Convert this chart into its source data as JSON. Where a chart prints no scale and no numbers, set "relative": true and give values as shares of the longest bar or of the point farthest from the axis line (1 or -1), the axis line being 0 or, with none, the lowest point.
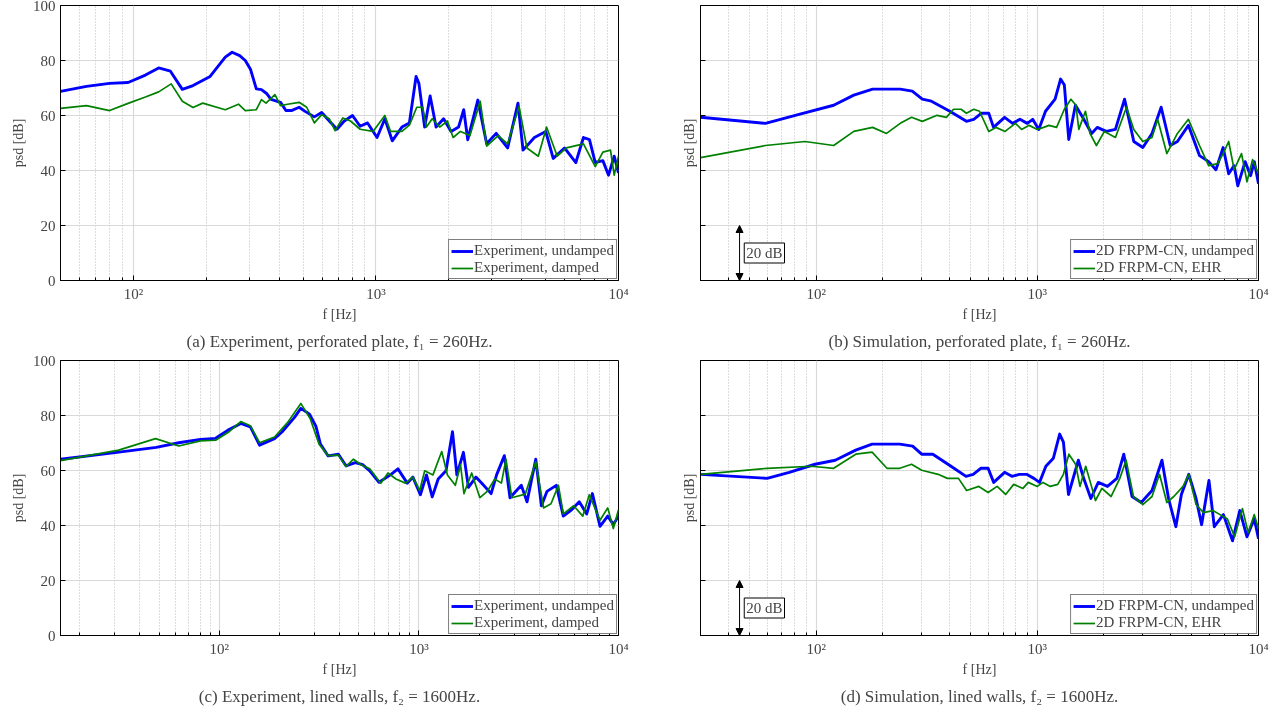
{
  "chart_data": [
    {
      "type": "line",
      "title": "(a) Experiment, perforated plate, f₁ = 260Hz.",
      "xlabel": "f [Hz]",
      "ylabel": "psd [dB]",
      "log": "x",
      "grid": true,
      "legend": "bottom right",
      "xlim": [
        50,
        10000
      ],
      "xticks": [
        {
          "value": 100,
          "label": "10²"
        },
        {
          "value": 1000,
          "label": "10³"
        },
        {
          "value": 10000,
          "label": "10⁴"
        }
      ],
      "ylim": [
        0,
        100
      ],
      "yticks": [
        0,
        20,
        40,
        60,
        80,
        100
      ],
      "series": [
        {
          "name": "Experiment, undamped",
          "color": "#0000ff",
          "x": [
            50,
            64,
            79.7,
            95,
            112,
            127,
            142,
            159,
            176,
            207,
            239,
            255,
            274,
            289,
            304,
            321,
            337,
            355,
            369,
            404,
            425,
            448,
            482,
            510,
            557,
            597,
            642,
            690,
            740,
            800,
            860,
            923,
            1010,
            1088,
            1167,
            1279,
            1373,
            1463,
            1503,
            1587,
            1672,
            1769,
            1900,
            2040,
            2190,
            2300,
            2390,
            2630,
            2860,
            3130,
            3490,
            3850,
            4040,
            4500,
            5010,
            5380,
            5990,
            6670,
            7170,
            7590,
            8020,
            8620,
            9100,
            9600,
            10000
          ],
          "values": [
            68.8,
            70.6,
            71.7,
            72.0,
            74.7,
            77.3,
            76.1,
            69.5,
            70.9,
            74.2,
            81.2,
            83.0,
            81.8,
            80.0,
            76.7,
            69.7,
            69.4,
            67.9,
            65.9,
            64.8,
            61.8,
            61.8,
            63.0,
            61.5,
            59.5,
            61.1,
            58.0,
            55.0,
            58.0,
            60.0,
            56.1,
            57.3,
            52.0,
            58.8,
            50.8,
            55.8,
            57.3,
            74.2,
            71.7,
            55.8,
            67.1,
            55.8,
            58.8,
            54.2,
            55.8,
            62.1,
            51.2,
            65.6,
            49.7,
            53.5,
            48.2,
            64.5,
            47.4,
            52.0,
            54.2,
            44.4,
            48.2,
            42.9,
            52.0,
            51.2,
            42.9,
            43.6,
            38.3,
            45.2,
            39.1
          ]
        },
        {
          "name": "Experiment, damped",
          "color": "#008000",
          "x": [
            50,
            64,
            79.7,
            95,
            112,
            127,
            143,
            159,
            176,
            193,
            239,
            271,
            289,
            321,
            337,
            352,
            383,
            404,
            432,
            482,
            518,
            557,
            597,
            642,
            678,
            730,
            785,
            860,
            972,
            1088,
            1148,
            1279,
            1373,
            1473,
            1557,
            1615,
            1705,
            1831,
            1970,
            2080,
            2230,
            2440,
            2690,
            2860,
            3190,
            3490,
            3890,
            4190,
            4670,
            5050,
            5590,
            6100,
            7170,
            8020,
            8620,
            9270,
            9600,
            10000
          ],
          "values": [
            62.6,
            63.6,
            61.8,
            64.4,
            66.7,
            68.6,
            71.5,
            65.2,
            62.9,
            64.5,
            62.1,
            64.1,
            61.8,
            62.1,
            65.8,
            64.5,
            67.6,
            63.6,
            64.1,
            64.8,
            63.0,
            57.3,
            60.3,
            58.8,
            54.5,
            59.1,
            58.0,
            55.0,
            54.2,
            60.0,
            54.2,
            54.2,
            56.5,
            63.0,
            63.0,
            55.8,
            58.8,
            55.8,
            58.0,
            52.0,
            54.2,
            52.7,
            65.2,
            48.9,
            52.7,
            49.7,
            63.3,
            48.2,
            45.2,
            55.8,
            45.2,
            48.2,
            49.7,
            41.4,
            46.7,
            47.4,
            38.3,
            45.2
          ]
        }
      ]
    },
    {
      "type": "line",
      "title": "(b) Simulation, perforated plate, f₁ = 260Hz.",
      "xlabel": "f [Hz]",
      "ylabel": "psd [dB]",
      "log": "x",
      "grid": true,
      "legend": "bottom right",
      "relative": true,
      "tick_labels": "x",
      "annotations": [
        "20 dB"
      ],
      "xlim": [
        30,
        10000
      ],
      "xticks": [
        {
          "value": 100,
          "label": "10²"
        },
        {
          "value": 1000,
          "label": "10³"
        },
        {
          "value": 10000,
          "label": "10⁴"
        }
      ],
      "series": [
        {
          "name": "2D FRPM-CN, undamped",
          "color": "#0000ff",
          "x": [
            30,
            59,
            87,
            120,
            148,
            180,
            240,
            272,
            302,
            332,
            402,
            478,
            516,
            558,
            603,
            634,
            711,
            773,
            834,
            901,
            953,
            1015,
            1089,
            1203,
            1274,
            1325,
            1387,
            1487,
            1603,
            1760,
            1866,
            2050,
            2255,
            2480,
            2730,
            3000,
            3300,
            3630,
            3990,
            4300,
            4820,
            5410,
            5950,
            6420,
            6920,
            7330,
            7760,
            8060,
            8700,
            9210,
            9570,
            10000
          ],
          "values": [
            0.81,
            0.78,
            0.83,
            0.87,
            0.92,
            0.95,
            0.95,
            0.94,
            0.9,
            0.89,
            0.84,
            0.79,
            0.8,
            0.83,
            0.83,
            0.76,
            0.81,
            0.78,
            0.8,
            0.78,
            0.8,
            0.75,
            0.84,
            0.9,
            1.0,
            0.97,
            0.7,
            0.87,
            0.81,
            0.73,
            0.76,
            0.74,
            0.75,
            0.9,
            0.69,
            0.66,
            0.73,
            0.86,
            0.67,
            0.69,
            0.77,
            0.62,
            0.59,
            0.55,
            0.66,
            0.53,
            0.57,
            0.47,
            0.59,
            0.52,
            0.59,
            0.48
          ]
        },
        {
          "name": "2D FRPM-CN, EHR",
          "color": "#008000",
          "x": [
            30,
            59,
            89,
            120,
            148,
            180,
            208,
            240,
            270,
            302,
            352,
            388,
            418,
            452,
            478,
            516,
            548,
            603,
            650,
            715,
            796,
            849,
            919,
            1000,
            1068,
            1129,
            1222,
            1325,
            1419,
            1495,
            1540,
            1650,
            1730,
            1850,
            2010,
            2255,
            2530,
            2730,
            3000,
            3300,
            3500,
            3850,
            4300,
            4820,
            5410,
            5950,
            6540,
            6920,
            7330,
            7760,
            8380,
            8870,
            9400,
            10000
          ],
          "values": [
            0.61,
            0.67,
            0.69,
            0.67,
            0.74,
            0.76,
            0.73,
            0.78,
            0.81,
            0.79,
            0.82,
            0.81,
            0.85,
            0.85,
            0.83,
            0.85,
            0.84,
            0.74,
            0.76,
            0.74,
            0.78,
            0.75,
            0.77,
            0.75,
            0.76,
            0.77,
            0.76,
            0.85,
            0.9,
            0.87,
            0.75,
            0.84,
            0.73,
            0.67,
            0.74,
            0.71,
            0.86,
            0.75,
            0.69,
            0.71,
            0.8,
            0.63,
            0.73,
            0.8,
            0.67,
            0.57,
            0.58,
            0.63,
            0.69,
            0.55,
            0.63,
            0.49,
            0.6,
            0.53
          ]
        }
      ]
    },
    {
      "type": "line",
      "title": "(c) Experiment, lined walls, f₂ = 1600Hz.",
      "xlabel": "f [Hz]",
      "ylabel": "psd [dB]",
      "log": "x",
      "grid": true,
      "legend": "bottom right",
      "xlim": [
        16,
        10000
      ],
      "xticks": [
        {
          "value": 100,
          "label": "10²"
        },
        {
          "value": 1000,
          "label": "10³"
        },
        {
          "value": 10000,
          "label": "10⁴"
        }
      ],
      "ylim": [
        0,
        100
      ],
      "yticks": [
        0,
        20,
        40,
        60,
        80,
        100
      ],
      "series": [
        {
          "name": "Experiment, undamped",
          "color": "#0000ff",
          "x": [
            16,
            30,
            48.3,
            62.6,
            80.5,
            95.8,
            110,
            128,
            143,
            159,
            189,
            206,
            238,
            256,
            283,
            305,
            321,
            351,
            395,
            431,
            480,
            522,
            567,
            631,
            720,
            785,
            874,
            933,
            1017,
            1091,
            1166,
            1249,
            1367,
            1473,
            1549,
            1671,
            1770,
            1930,
            2110,
            2300,
            2450,
            2680,
            2860,
            3260,
            3480,
            3850,
            4110,
            4380,
            4880,
            5290,
            5820,
            6360,
            6930,
            7400,
            8080,
            8830,
            9420,
            10000
          ],
          "values": [
            64.1,
            66.5,
            68.4,
            70.1,
            71.3,
            71.7,
            74.6,
            77.1,
            75.9,
            69.2,
            71.6,
            74.0,
            79.3,
            82.6,
            80.5,
            76.0,
            69.6,
            65.3,
            65.9,
            61.7,
            62.9,
            62.1,
            59.9,
            55.7,
            58.4,
            60.6,
            55.4,
            57.6,
            51.2,
            58.4,
            50.4,
            56.9,
            59.9,
            74.1,
            58.4,
            66.6,
            53.9,
            57.6,
            54.6,
            51.6,
            58.4,
            65.4,
            50.1,
            54.6,
            48.6,
            64.1,
            47.2,
            52.4,
            54.6,
            43.4,
            45.7,
            48.6,
            44.2,
            51.6,
            39.7,
            43.4,
            40.4,
            43.4
          ]
        },
        {
          "name": "Experiment, damped",
          "color": "#008000",
          "x": [
            16,
            31.3,
            47.9,
            62.6,
            80.5,
            95.8,
            112,
            128,
            143,
            159,
            189,
            220,
            256,
            285,
            316,
            351,
            395,
            431,
            470,
            512,
            567,
            644,
            700,
            767,
            856,
            933,
            1009,
            1069,
            1176,
            1301,
            1389,
            1522,
            1616,
            1681,
            1838,
            2020,
            2200,
            2400,
            2590,
            2730,
            2920,
            3410,
            3850,
            4210,
            4590,
            5000,
            5290,
            5960,
            6620,
            7140,
            8080,
            8830,
            9420,
            10000
          ],
          "values": [
            63.6,
            67.4,
            71.6,
            68.9,
            70.8,
            71.0,
            74.1,
            77.8,
            76.3,
            70.1,
            72.2,
            77.5,
            84.4,
            78.9,
            69.6,
            65.4,
            65.6,
            61.4,
            64.1,
            62.1,
            60.6,
            55.4,
            59.1,
            56.9,
            55.4,
            57.6,
            52.7,
            59.9,
            58.4,
            66.9,
            58.4,
            54.6,
            62.1,
            51.6,
            59.1,
            50.1,
            52.4,
            56.9,
            55.4,
            64.1,
            50.1,
            51.4,
            63.2,
            46.4,
            47.9,
            54.6,
            44.2,
            47.2,
            43.4,
            51.2,
            41.9,
            46.4,
            38.9,
            45.7
          ]
        }
      ]
    },
    {
      "type": "line",
      "title": "(d) Simulation, lined walls, f₂ = 1600Hz.",
      "xlabel": "f [Hz]",
      "ylabel": "psd [dB]",
      "log": "x",
      "grid": true,
      "legend": "bottom right",
      "relative": true,
      "tick_labels": "x",
      "annotations": [
        "20 dB"
      ],
      "xlim": [
        30,
        10000
      ],
      "xticks": [
        {
          "value": 100,
          "label": "10²"
        },
        {
          "value": 1000,
          "label": "10³"
        },
        {
          "value": 10000,
          "label": "10⁴"
        }
      ],
      "series": [
        {
          "name": "2D FRPM-CN, undamped",
          "color": "#0000ff",
          "x": [
            30,
            60,
            75.6,
            98.9,
            122,
            151,
            179,
            239,
            273,
            300,
            337,
            407,
            476,
            513,
            555,
            599,
            635,
            711,
            767,
            829,
            894,
            965,
            1023,
            1093,
            1182,
            1262,
            1312,
            1383,
            1533,
            1620,
            1746,
            1886,
            2075,
            2290,
            2460,
            2680,
            2950,
            3300,
            3660,
            3920,
            4230,
            4480,
            4840,
            5220,
            5530,
            5970,
            6310,
            6940,
            7630,
            8230,
            8870,
            9570,
            10000
          ],
          "values": [
            0.8,
            0.78,
            0.81,
            0.85,
            0.87,
            0.92,
            0.95,
            0.95,
            0.94,
            0.9,
            0.9,
            0.84,
            0.79,
            0.8,
            0.83,
            0.83,
            0.76,
            0.81,
            0.79,
            0.8,
            0.8,
            0.78,
            0.76,
            0.84,
            0.88,
            1.0,
            0.96,
            0.7,
            0.87,
            0.78,
            0.68,
            0.76,
            0.74,
            0.78,
            0.9,
            0.69,
            0.66,
            0.72,
            0.87,
            0.68,
            0.54,
            0.7,
            0.8,
            0.68,
            0.55,
            0.77,
            0.54,
            0.6,
            0.47,
            0.62,
            0.49,
            0.58,
            0.48
          ]
        },
        {
          "name": "2D FRPM-CN, EHR",
          "color": "#008000",
          "x": [
            30,
            60,
            95,
            120,
            151,
            179,
            209,
            239,
            270,
            300,
            356,
            392,
            440,
            479,
            544,
            599,
            658,
            719,
            782,
            861,
            910,
            1000,
            1061,
            1144,
            1237,
            1312,
            1389,
            1489,
            1559,
            1655,
            1737,
            1832,
            1958,
            2157,
            2360,
            2520,
            2720,
            3000,
            3300,
            3570,
            3850,
            4140,
            4560,
            4840,
            5220,
            5640,
            6220,
            6700,
            7220,
            7800,
            8460,
            8980,
            9570,
            10000
          ],
          "values": [
            0.8,
            0.83,
            0.84,
            0.83,
            0.9,
            0.91,
            0.83,
            0.83,
            0.85,
            0.82,
            0.8,
            0.78,
            0.78,
            0.72,
            0.74,
            0.71,
            0.74,
            0.7,
            0.75,
            0.73,
            0.76,
            0.74,
            0.76,
            0.74,
            0.75,
            0.8,
            0.9,
            0.85,
            0.74,
            0.84,
            0.76,
            0.67,
            0.73,
            0.69,
            0.78,
            0.87,
            0.69,
            0.65,
            0.69,
            0.8,
            0.66,
            0.69,
            0.74,
            0.8,
            0.65,
            0.61,
            0.62,
            0.6,
            0.58,
            0.49,
            0.63,
            0.51,
            0.6,
            0.53
          ]
        }
      ]
    }
  ]
}
